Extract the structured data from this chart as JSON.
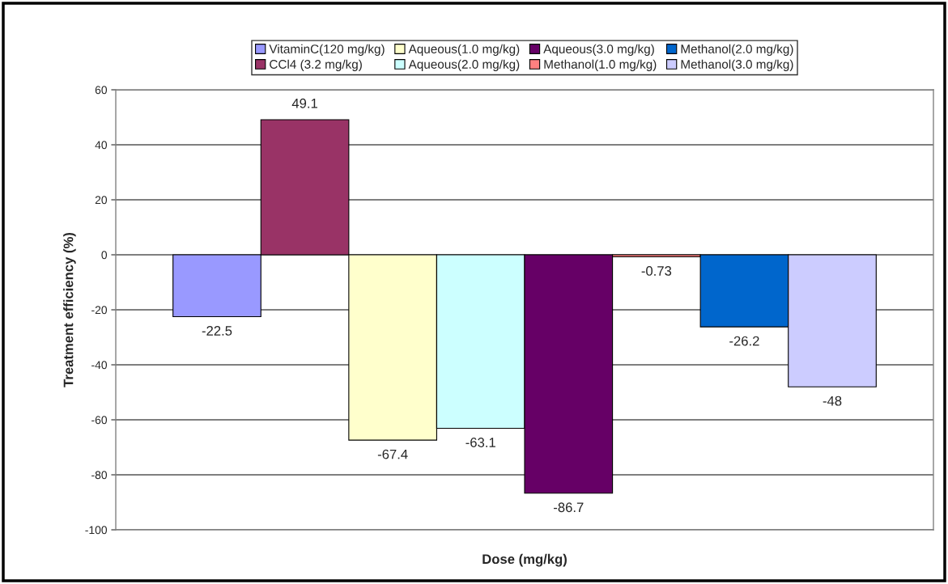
{
  "chart_data": {
    "type": "bar",
    "xlabel": "Dose (mg/kg)",
    "ylabel": "Treatment efficiency (%)",
    "categories": [
      null
    ],
    "series": [
      {
        "name": "VitaminC(120 mg/kg)",
        "color": "#9999ff",
        "values": [
          -22.5
        ]
      },
      {
        "name": "CCl4 (3.2 mg/kg)",
        "color": "#993366",
        "values": [
          49.1
        ]
      },
      {
        "name": "Aqueous(1.0 mg/kg)",
        "color": "#ffffcc",
        "values": [
          -67.4
        ]
      },
      {
        "name": "Aqueous(2.0 mg/kg)",
        "color": "#ccffff",
        "values": [
          -63.1
        ]
      },
      {
        "name": "Aqueous(3.0 mg/kg)",
        "color": "#660066",
        "values": [
          -86.7
        ]
      },
      {
        "name": "Methanol(1.0 mg/kg)",
        "color": "#ff8080",
        "values": [
          -0.73
        ]
      },
      {
        "name": "Methanol(2.0 mg/kg)",
        "color": "#0066cc",
        "values": [
          -26.2
        ]
      },
      {
        "name": "Methanol(3.0 mg/kg)",
        "color": "#ccccff",
        "values": [
          -48
        ]
      }
    ],
    "ylim": [
      -100,
      60
    ],
    "yticks": [
      -100,
      -80,
      -60,
      -40,
      -20,
      0,
      20,
      40,
      60
    ],
    "grid": "y",
    "legend": "top",
    "data_labels": true,
    "tick_labels": "y"
  }
}
